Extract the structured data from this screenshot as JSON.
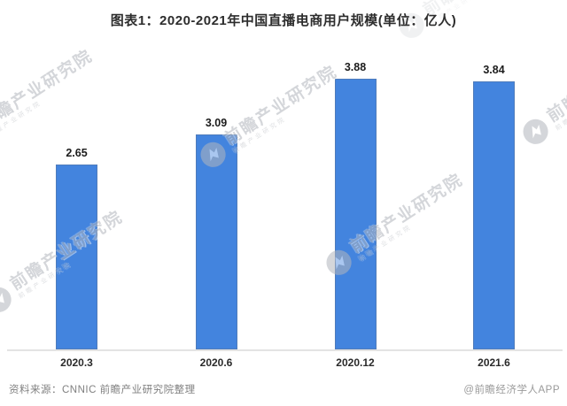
{
  "title": "图表1：2020-2021年中国直播电商用户规模(单位：亿人)",
  "chart_data": {
    "type": "bar",
    "categories": [
      "2020.3",
      "2020.6",
      "2020.12",
      "2021.6"
    ],
    "values": [
      2.65,
      3.09,
      3.88,
      3.84
    ],
    "value_labels": [
      "2.65",
      "3.09",
      "3.88",
      "3.84"
    ],
    "title": "图表1：2020-2021年中国直播电商用户规模(单位：亿人)",
    "xlabel": "",
    "ylabel": "",
    "unit": "亿人",
    "ylim": [
      0,
      4.3
    ],
    "grid": "off",
    "legend": "none",
    "bar_color": "#4384DE",
    "axis_line_color": "#e3e3e3"
  },
  "footer": {
    "source": "资料来源：CNNIC 前瞻产业研究院整理",
    "credit": "@前瞻经济学人APP"
  },
  "watermark": {
    "text": "前瞻产业研究院"
  }
}
